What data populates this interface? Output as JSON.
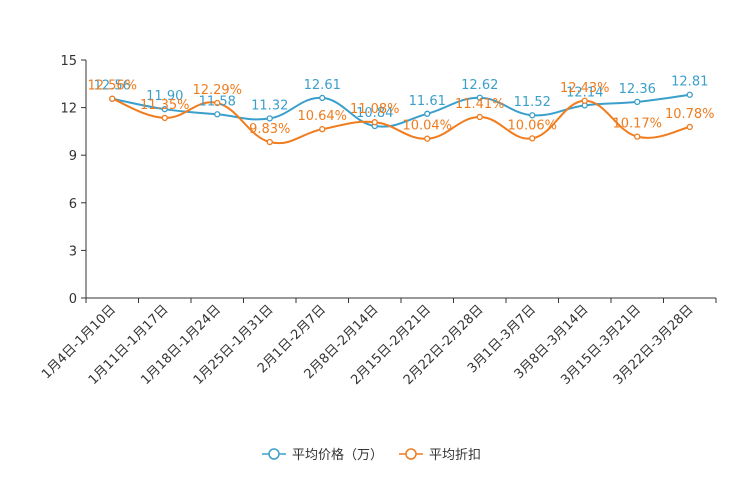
{
  "chart_data": {
    "type": "line",
    "categories": [
      "1月4日-1月10日",
      "1月11日-1月17日",
      "1月18日-1月24日",
      "1月25日-1月31日",
      "2月1日-2月7日",
      "2月8日-2月14日",
      "2月15日-2月21日",
      "2月22日-2月28日",
      "3月1日-3月7日",
      "3月8日-3月14日",
      "3月15日-3月21日",
      "3月22日-3月28日"
    ],
    "ylim": [
      0,
      15
    ],
    "yticks": [
      0,
      3,
      6,
      9,
      12,
      15
    ],
    "series": [
      {
        "name": "平均价格（万）",
        "color": "#3b9fcb",
        "values": [
          12.56,
          11.9,
          11.58,
          11.32,
          12.61,
          10.84,
          11.61,
          12.62,
          11.52,
          12.14,
          12.36,
          12.81
        ],
        "labels": [
          "12.56",
          "11.90",
          "11.58",
          "11.32",
          "12.61",
          "10.84",
          "11.61",
          "12.62",
          "11.52",
          "12.14",
          "12.36",
          "12.81"
        ]
      },
      {
        "name": "平均折扣",
        "color": "#f07c1e",
        "values": [
          12.56,
          11.35,
          12.29,
          9.83,
          10.64,
          11.08,
          10.04,
          11.41,
          10.06,
          12.43,
          10.17,
          10.78
        ],
        "labels": [
          "12.56%",
          "11.35%",
          "12.29%",
          "9.83%",
          "10.64%",
          "11.08%",
          "10.04%",
          "11.41%",
          "10.06%",
          "12.43%",
          "10.17%",
          "10.78%"
        ]
      }
    ]
  }
}
